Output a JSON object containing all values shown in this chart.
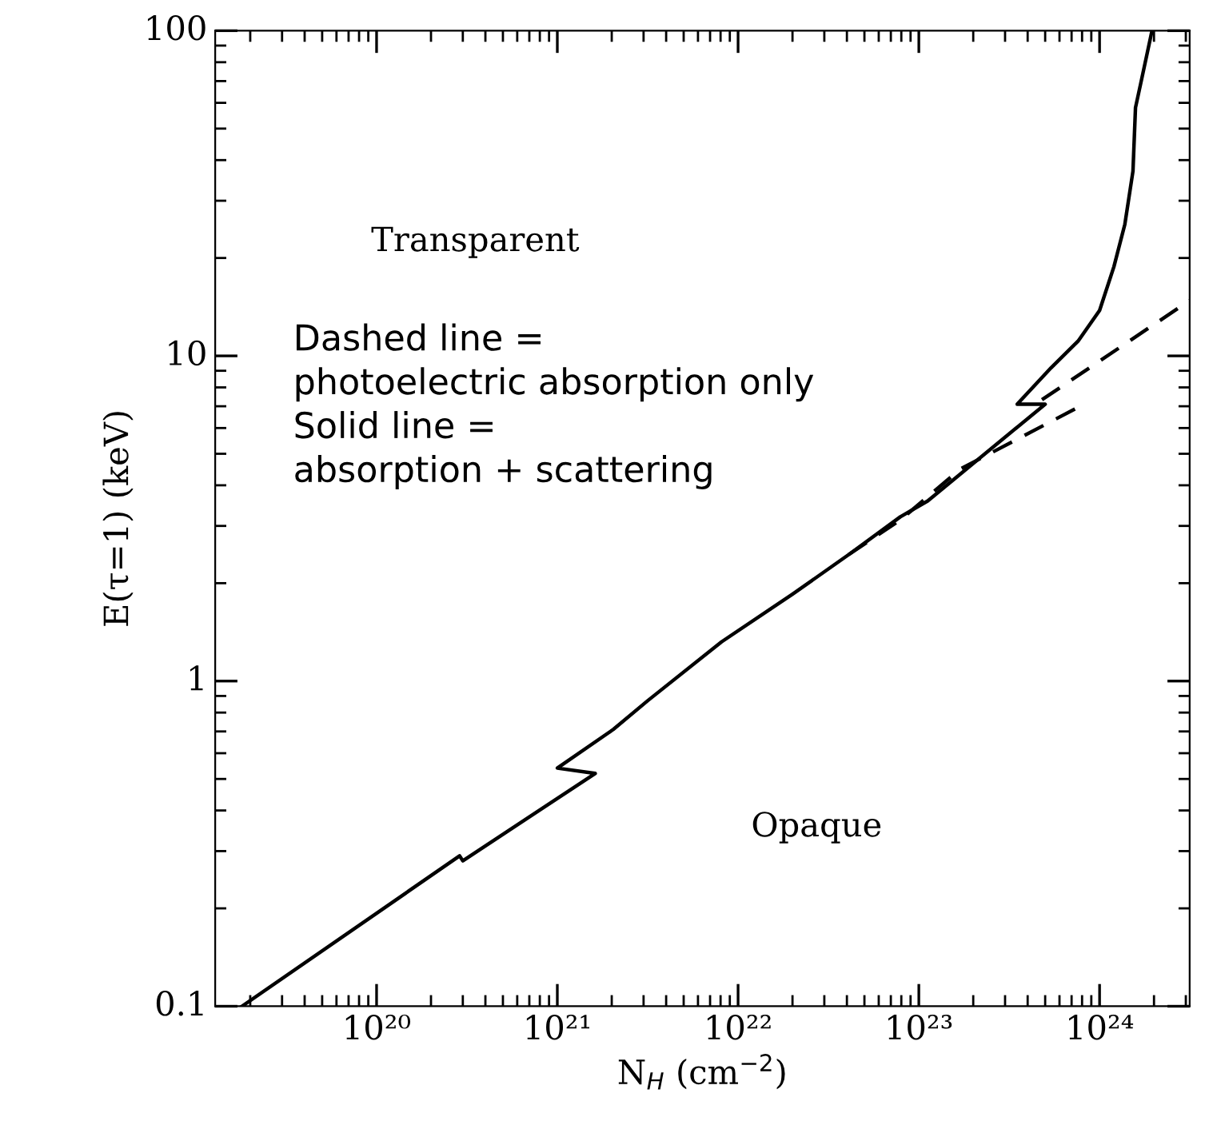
{
  "chart_data": {
    "type": "line",
    "xlabel": "N$_{H}$ (cm$^{−2}$)",
    "ylabel": "E(τ=1) (keV)",
    "log": "xy",
    "xlim": [
      1.28e+19,
      3.15e+24
    ],
    "ylim": [
      0.1,
      100
    ],
    "xticks": [
      {
        "value": 1e+20,
        "label": "10²⁰"
      },
      {
        "value": 1e+21,
        "label": "10²¹"
      },
      {
        "value": 1e+22,
        "label": "10²²"
      },
      {
        "value": 1e+23,
        "label": "10²³"
      },
      {
        "value": 1e+24,
        "label": "10²⁴"
      }
    ],
    "yticks": [
      0.1,
      1,
      10,
      100
    ],
    "grid": false,
    "series": [
      {
        "color": "#000000",
        "line_style": "solid",
        "x": [
          1.8e+19,
          2.88e+20,
          3e+20,
          1.62e+21,
          1e+21,
          2.04e+21,
          3.16e+21,
          8.1e+21,
          2e+22,
          4.1e+22,
          7.9e+22,
          1.12e+23,
          5e+23,
          3.5e+23,
          5.4e+23,
          7.6e+23,
          1e+24,
          1.2e+24,
          1.38e+24,
          1.53e+24,
          1.58e+24,
          1.7e+24,
          1.95e+24
        ],
        "values": [
          0.1,
          0.29,
          0.28,
          0.52,
          0.54,
          0.71,
          0.87,
          1.32,
          1.85,
          2.45,
          3.2,
          3.58,
          7.1,
          7.1,
          9.2,
          11.1,
          13.8,
          18.8,
          25.4,
          37,
          58,
          70,
          100
        ]
      },
      {
        "color": "#000000",
        "line_style": "dashed",
        "x": [
          4.1e+22,
          7.9e+22,
          1.7e+23,
          7.8e+23
        ],
        "values": [
          2.45,
          3.13,
          4.49,
          7.0
        ]
      },
      {
        "color": "#000000",
        "line_style": "dashed",
        "x": [
          4.8e+23,
          3.15e+24
        ],
        "values": [
          7.33,
          14.8
        ]
      }
    ],
    "annotations": [
      "Transparent",
      "Opaque",
      "Dashed line =\nphotoelectric absorption only\nSolid line =\nabsorption + scattering"
    ]
  }
}
